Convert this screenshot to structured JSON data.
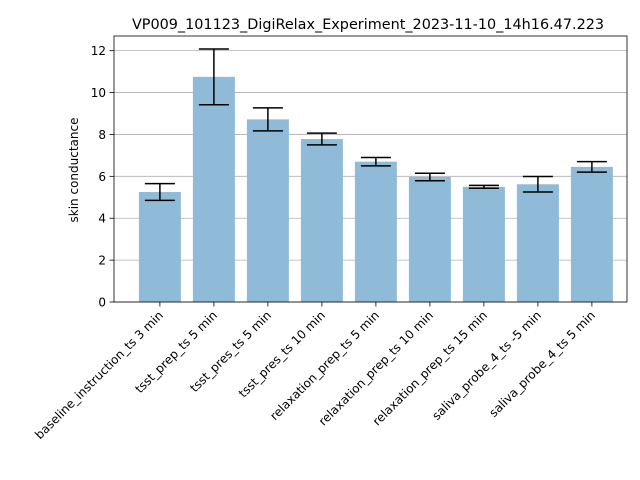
{
  "chart_data": {
    "type": "bar",
    "title": "VP009_101123_DigiRelax_Experiment_2023-11-10_14h16.47.223",
    "xlabel": "",
    "ylabel": "skin conductance",
    "categories": [
      "baseline_instruction_ts 3 min",
      "tsst_prep_ts 5 min",
      "tsst_pres_ts 5 min",
      "tsst_pres_ts 10 min",
      "relaxation_prep_ts 5 min",
      "relaxation_prep_ts 10 min",
      "relaxation_prep_ts 15 min",
      "saliva_probe_4_ts -5 min",
      "saliva_probe_4_ts 5 min"
    ],
    "values": [
      5.25,
      10.75,
      8.72,
      7.78,
      6.7,
      5.97,
      5.5,
      5.62,
      6.45
    ],
    "errors": [
      0.4,
      1.33,
      0.55,
      0.28,
      0.2,
      0.18,
      0.07,
      0.37,
      0.25
    ],
    "ylim": [
      0,
      12.7
    ],
    "yticks": [
      0,
      2,
      4,
      6,
      8,
      10,
      12
    ],
    "grid": "y",
    "bar_color": "#8fbbd9",
    "error_color": "#000000"
  }
}
